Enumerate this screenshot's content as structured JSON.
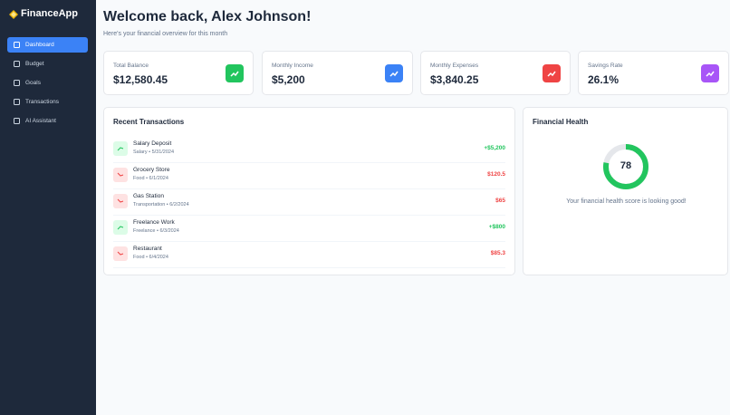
{
  "app": {
    "name": "FinanceApp"
  },
  "nav": [
    {
      "label": "Dashboard",
      "active": true
    },
    {
      "label": "Budget",
      "active": false
    },
    {
      "label": "Goals",
      "active": false
    },
    {
      "label": "Transactions",
      "active": false
    },
    {
      "label": "AI Assistant",
      "active": false
    }
  ],
  "header": {
    "title": "Welcome back, Alex Johnson!",
    "subtitle": "Here's your financial overview for this month"
  },
  "cards": [
    {
      "label": "Total Balance",
      "value": "$12,580.45",
      "color": "#22c55e"
    },
    {
      "label": "Monthly Income",
      "value": "$5,200",
      "color": "#3b82f6"
    },
    {
      "label": "Monthly Expenses",
      "value": "$3,840.25",
      "color": "#ef4444"
    },
    {
      "label": "Savings Rate",
      "value": "26.1%",
      "color": "#a855f7"
    }
  ],
  "transactions": {
    "title": "Recent Transactions",
    "rows": [
      {
        "name": "Salary Deposit",
        "meta": "Salary • 5/31/2024",
        "amount": "+$5,200"
      },
      {
        "name": "Grocery Store",
        "meta": "Food • 6/1/2024",
        "amount": "$120.5"
      },
      {
        "name": "Gas Station",
        "meta": "Transportation • 6/2/2024",
        "amount": "$65"
      },
      {
        "name": "Freelance Work",
        "meta": "Freelance • 6/3/2024",
        "amount": "+$800"
      },
      {
        "name": "Restaurant",
        "meta": "Food • 6/4/2024",
        "amount": "$85.3"
      }
    ]
  },
  "health": {
    "title": "Financial Health",
    "score": 78,
    "message": "Your financial health score is looking good!"
  }
}
